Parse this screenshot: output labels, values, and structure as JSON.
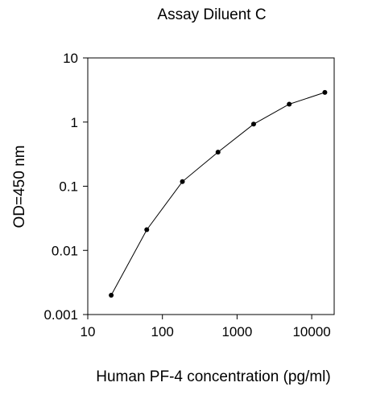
{
  "chart_data": {
    "type": "line",
    "title": "Assay Diluent C",
    "xlabel": "Human PF-4 concentration (pg/ml)",
    "ylabel": "OD=450 nm",
    "x_scale": "log",
    "y_scale": "log",
    "xlim": [
      10,
      20000
    ],
    "ylim": [
      0.001,
      10
    ],
    "x_ticks": [
      {
        "value": 10,
        "label": "10"
      },
      {
        "value": 100,
        "label": "100"
      },
      {
        "value": 1000,
        "label": "1000"
      },
      {
        "value": 10000,
        "label": "10000"
      }
    ],
    "y_ticks": [
      {
        "value": 10,
        "label": "10"
      },
      {
        "value": 1,
        "label": "1"
      },
      {
        "value": 0.1,
        "label": "0.1"
      },
      {
        "value": 0.01,
        "label": "0.01"
      },
      {
        "value": 0.001,
        "label": "0.001"
      }
    ],
    "grid": false,
    "legend": "none",
    "series": [
      {
        "x": [
          20.6,
          61.7,
          185.2,
          555.6,
          1666.7,
          5000,
          15000
        ],
        "y": [
          0.002,
          0.021,
          0.118,
          0.34,
          0.93,
          1.9,
          2.9
        ]
      }
    ],
    "colors": {
      "line": "#000000",
      "marker": "#000000",
      "axis": "#000000"
    }
  }
}
